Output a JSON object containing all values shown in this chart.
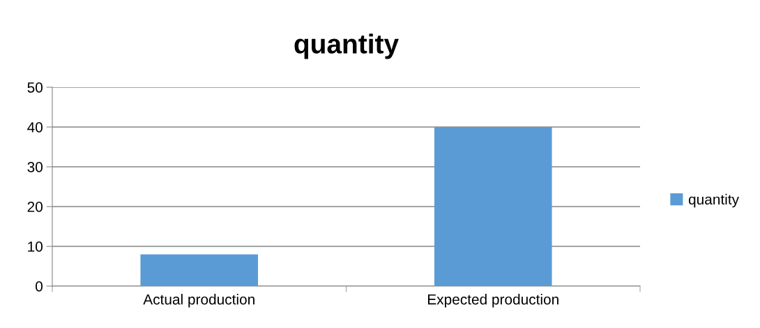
{
  "chart_data": {
    "type": "bar",
    "title": "quantity",
    "categories": [
      "Actual production",
      "Expected production"
    ],
    "series": [
      {
        "name": "quantity",
        "color": "#5b9bd5",
        "values": [
          8,
          40
        ]
      }
    ],
    "ylim": [
      0,
      50
    ],
    "yticks": [
      0,
      10,
      20,
      30,
      40,
      50
    ],
    "grid": "y",
    "legend": "right"
  }
}
